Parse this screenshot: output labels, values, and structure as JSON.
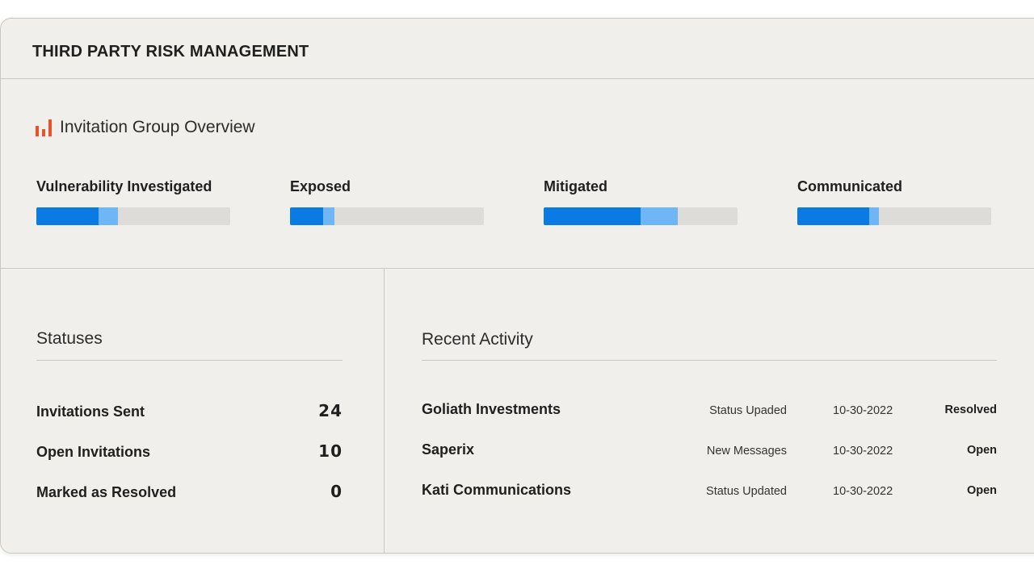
{
  "header": {
    "title": "THIRD PARTY RISK MANAGEMENT"
  },
  "overview": {
    "icon": "bar-chart-icon",
    "accent_color": "#e8542a",
    "title": "Invitation Group Overview",
    "metrics": [
      {
        "label": "Vulnerability Investigated",
        "primary_fraction": 0.32,
        "secondary_fraction": 0.1
      },
      {
        "label": "Exposed",
        "primary_fraction": 0.17,
        "secondary_fraction": 0.06
      },
      {
        "label": "Mitigated",
        "primary_fraction": 0.5,
        "secondary_fraction": 0.19
      },
      {
        "label": "Communicated",
        "primary_fraction": 0.37,
        "secondary_fraction": 0.05
      }
    ],
    "primary_color": "#0a7be2",
    "secondary_color": "#6fb6f6"
  },
  "statuses": {
    "title": "Statuses",
    "items": [
      {
        "label": "Invitations Sent",
        "count": "24"
      },
      {
        "label": "Open Invitations",
        "count": "10"
      },
      {
        "label": "Marked as Resolved",
        "count": "0"
      }
    ]
  },
  "activity": {
    "title": "Recent Activity",
    "rows": [
      {
        "name": "Goliath Investments",
        "event": "Status Upaded",
        "date": "10-30-2022",
        "state": "Resolved"
      },
      {
        "name": "Saperix",
        "event": "New Messages",
        "date": "10-30-2022",
        "state": "Open"
      },
      {
        "name": "Kati Communications",
        "event": "Status Updated",
        "date": "10-30-2022",
        "state": "Open"
      }
    ]
  }
}
